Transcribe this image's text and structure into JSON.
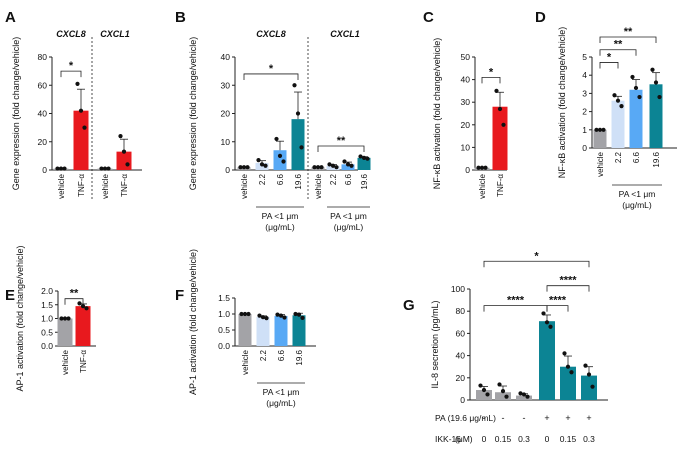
{
  "colors": {
    "vehicle": "#a3a3a7",
    "tnf": "#e8191e",
    "light": "#cfe0f7",
    "mid": "#58a9f5",
    "dark": "#0c8494",
    "axis": "#222222"
  },
  "chart_data": [
    {
      "panel": "A",
      "type": "bar",
      "ylabel": "Gene expression (fold change/vehicle)",
      "ylim": [
        0,
        80
      ],
      "yticks": [
        "0",
        "20",
        "40",
        "60",
        "80"
      ],
      "groups": [
        {
          "label": "CXCL8",
          "categories": [
            "vehicle",
            "TNF-α"
          ]
        },
        {
          "label": "CXCL1",
          "categories": [
            "vehicle",
            "TNF-α"
          ]
        }
      ],
      "bars": [
        {
          "category": "vehicle",
          "value": 1,
          "color": "vehicle",
          "points": [
            1,
            1,
            1
          ]
        },
        {
          "category": "TNF-α",
          "value": 42,
          "color": "tnf",
          "points": [
            61,
            42,
            30
          ]
        },
        {
          "category": "vehicle",
          "value": 1,
          "color": "vehicle",
          "points": [
            1,
            1,
            1
          ]
        },
        {
          "category": "TNF-α",
          "value": 13,
          "color": "tnf",
          "points": [
            24,
            13,
            4
          ]
        }
      ],
      "significance": [
        {
          "label": "*",
          "from": 0,
          "to": 1,
          "y": 70
        }
      ]
    },
    {
      "panel": "B",
      "type": "bar",
      "ylabel": "Gene expression (fold change/vehicle)",
      "ylim": [
        0,
        40
      ],
      "yticks": [
        "0",
        "10",
        "20",
        "30",
        "40"
      ],
      "groups": [
        {
          "label": "CXCL8",
          "categories": [
            "vehicle",
            "2.2",
            "6.6",
            "19.6"
          ],
          "subtitle": "PA <1 μm",
          "subtitle2": "(μg/mL)"
        },
        {
          "label": "CXCL1",
          "categories": [
            "vehicle",
            "2.2",
            "6.6",
            "19.6"
          ],
          "subtitle": "PA <1 μm",
          "subtitle2": "(μg/mL)"
        }
      ],
      "bars": [
        {
          "category": "vehicle",
          "value": 1,
          "color": "vehicle",
          "points": [
            1,
            1,
            1
          ]
        },
        {
          "category": "2.2",
          "value": 2.5,
          "color": "light",
          "points": [
            3.5,
            2,
            1.5
          ]
        },
        {
          "category": "6.6",
          "value": 7,
          "color": "mid",
          "points": [
            11,
            5,
            3
          ]
        },
        {
          "category": "19.6",
          "value": 18,
          "color": "dark",
          "points": [
            30,
            20,
            8
          ]
        },
        {
          "category": "vehicle",
          "value": 1,
          "color": "vehicle",
          "points": [
            1,
            1,
            1
          ]
        },
        {
          "category": "2.2",
          "value": 1.5,
          "color": "light",
          "points": [
            2,
            1.5,
            1
          ]
        },
        {
          "category": "6.6",
          "value": 2,
          "color": "mid",
          "points": [
            3,
            2,
            1.5
          ]
        },
        {
          "category": "19.6",
          "value": 4.3,
          "color": "dark",
          "points": [
            4.8,
            4.3,
            4
          ]
        }
      ],
      "significance": [
        {
          "label": "*",
          "from": 0,
          "to": 3,
          "y": 34
        },
        {
          "label": "**",
          "from": 4,
          "to": 7,
          "y": 8.5
        }
      ]
    },
    {
      "panel": "C",
      "type": "bar",
      "ylabel": "NF-κB activation (fold change/vehicle)",
      "ylim": [
        0,
        50
      ],
      "yticks": [
        "0",
        "10",
        "20",
        "30",
        "40",
        "50"
      ],
      "categories": [
        "vehicle",
        "TNF-α"
      ],
      "bars": [
        {
          "category": "vehicle",
          "value": 1,
          "color": "vehicle",
          "points": [
            1,
            1,
            1
          ]
        },
        {
          "category": "TNF-α",
          "value": 28,
          "color": "tnf",
          "points": [
            35,
            27,
            20
          ]
        }
      ],
      "significance": [
        {
          "label": "*",
          "from": 0,
          "to": 1,
          "y": 41
        }
      ]
    },
    {
      "panel": "D",
      "type": "bar",
      "ylabel": "NF-κB activation (fold change/vehicle)",
      "ylim": [
        0,
        5
      ],
      "yticks": [
        "0",
        "1",
        "2",
        "3",
        "4",
        "5"
      ],
      "categories": [
        "vehicle",
        "2.2",
        "6.6",
        "19.6"
      ],
      "subtitle": "PA <1 μm",
      "subtitle2": "(μg/mL)",
      "bars": [
        {
          "category": "vehicle",
          "value": 1,
          "color": "vehicle",
          "points": [
            1,
            1,
            1
          ]
        },
        {
          "category": "2.2",
          "value": 2.6,
          "color": "light",
          "points": [
            2.9,
            2.6,
            2.3
          ]
        },
        {
          "category": "6.6",
          "value": 3.2,
          "color": "mid",
          "points": [
            3.9,
            3.3,
            2.8
          ]
        },
        {
          "category": "19.6",
          "value": 3.5,
          "color": "dark",
          "points": [
            4.3,
            3.6,
            2.8
          ]
        }
      ],
      "significance": [
        {
          "label": "*",
          "from": 0,
          "to": 1,
          "y": 4.7
        },
        {
          "label": "**",
          "from": 0,
          "to": 2,
          "y": 5.4
        },
        {
          "label": "**",
          "from": 0,
          "to": 3,
          "y": 6.1
        }
      ]
    },
    {
      "panel": "E",
      "type": "bar",
      "ylabel": "AP-1 activation (fold change/vehicle)",
      "ylim": [
        0,
        2
      ],
      "yticks": [
        "0.0",
        "0.5",
        "1.0",
        "1.5",
        "2.0"
      ],
      "categories": [
        "vehicle",
        "TNF-α"
      ],
      "bars": [
        {
          "category": "vehicle",
          "value": 1,
          "color": "vehicle",
          "points": [
            1,
            1,
            1
          ]
        },
        {
          "category": "TNF-α",
          "value": 1.45,
          "color": "tnf",
          "points": [
            1.55,
            1.45,
            1.37
          ]
        }
      ],
      "significance": [
        {
          "label": "**",
          "from": 0,
          "to": 1,
          "y": 1.72
        }
      ]
    },
    {
      "panel": "F",
      "type": "bar",
      "ylabel": "AP-1 activation (fold change/vehicle)",
      "ylim": [
        0,
        1.5
      ],
      "yticks": [
        "0.0",
        "0.5",
        "1.0",
        "1.5"
      ],
      "categories": [
        "vehicle",
        "2.2",
        "6.6",
        "19.6"
      ],
      "subtitle": "PA <1 μm",
      "subtitle2": "(μg/mL)",
      "bars": [
        {
          "category": "vehicle",
          "value": 1,
          "color": "vehicle",
          "points": [
            1,
            1,
            1
          ]
        },
        {
          "category": "2.2",
          "value": 0.91,
          "color": "light",
          "points": [
            0.95,
            0.9,
            0.87
          ]
        },
        {
          "category": "6.6",
          "value": 0.94,
          "color": "mid",
          "points": [
            0.98,
            0.95,
            0.89
          ]
        },
        {
          "category": "19.6",
          "value": 0.96,
          "color": "dark",
          "points": [
            1.0,
            0.98,
            0.88
          ]
        }
      ],
      "significance": []
    },
    {
      "panel": "G",
      "type": "bar",
      "ylabel": "IL-8 secretion (pg/mL)",
      "ylim": [
        0,
        100
      ],
      "yticks": [
        "0",
        "20",
        "40",
        "60",
        "80",
        "100"
      ],
      "categories": [
        "0",
        "0.15",
        "0.3",
        "0",
        "0.15",
        "0.3"
      ],
      "row_pa_label": "PA (19.6 μg/mL)",
      "row_pa": [
        "-",
        "-",
        "-",
        "+",
        "+",
        "+"
      ],
      "row_ikk_label": "IKK-16",
      "row_ikk_unit": "(μM)",
      "bars": [
        {
          "category": "0",
          "value": 9,
          "color": "vehicle",
          "points": [
            13,
            9,
            5
          ]
        },
        {
          "category": "0.15",
          "value": 7,
          "color": "vehicle",
          "points": [
            14,
            8,
            3
          ]
        },
        {
          "category": "0.3",
          "value": 4,
          "color": "vehicle",
          "points": [
            6,
            5,
            3
          ]
        },
        {
          "category": "0",
          "value": 71,
          "color": "dark",
          "points": [
            78,
            70,
            66
          ]
        },
        {
          "category": "0.15",
          "value": 30,
          "color": "dark",
          "points": [
            42,
            30,
            25
          ]
        },
        {
          "category": "0.3",
          "value": 22,
          "color": "dark",
          "points": [
            31,
            23,
            12
          ]
        }
      ],
      "significance": [
        {
          "label": "****",
          "from": 0,
          "to": 3,
          "y": 85
        },
        {
          "label": "****",
          "from": 3,
          "to": 4,
          "y": 85
        },
        {
          "label": "****",
          "from": 3,
          "to": 5,
          "y": 103
        },
        {
          "label": "*",
          "from": 0,
          "to": 5,
          "y": 125
        }
      ]
    }
  ]
}
